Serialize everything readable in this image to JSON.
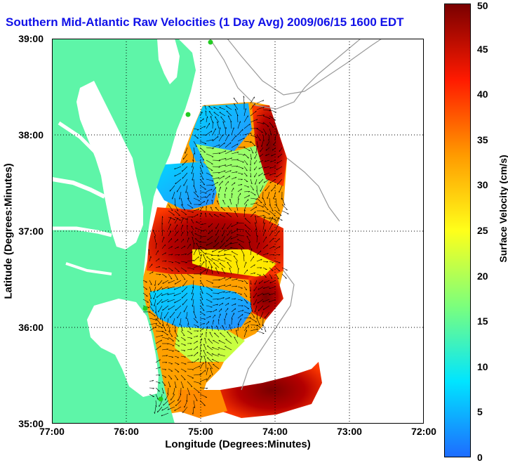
{
  "title": "Southern Mid-Atlantic Raw Velocities (1 Day Avg) 2009/06/15 1600 EDT",
  "axes": {
    "xlabel": "Longitude (Degrees:Minutes)",
    "ylabel": "Latitude (Degrees:Minutes)",
    "x_ticks": [
      "77:00",
      "76:00",
      "75:00",
      "74:00",
      "73:00",
      "72:00"
    ],
    "y_ticks": [
      "39:00",
      "38:00",
      "37:00",
      "36:00",
      "35:00"
    ],
    "lon_range_deg_west": [
      77,
      72
    ],
    "lat_range_deg_north": [
      35,
      39
    ]
  },
  "colorbar": {
    "label": "Surface Velocity (cm/s)",
    "ticks": [
      "50",
      "45",
      "40",
      "35",
      "30",
      "25",
      "20",
      "15",
      "10",
      "5",
      "0"
    ],
    "range": [
      0,
      50
    ],
    "colors": [
      "#1e6cff",
      "#00e5ff",
      "#7cff7c",
      "#ffff1a",
      "#ff9a00",
      "#ff1a00",
      "#7a0000"
    ]
  },
  "colors": {
    "land": "#5ef5a8",
    "water": "#ffffff",
    "title": "#1010e8",
    "station": "#22cc22"
  }
}
